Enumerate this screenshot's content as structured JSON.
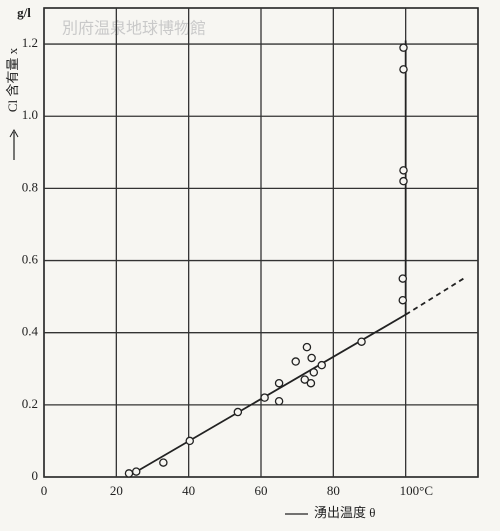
{
  "chart_data": {
    "type": "scatter",
    "watermark": "別府温泉地球博物館",
    "unit_label": "g/l",
    "y_label": "Cl 含有量 x",
    "x_label": "湧出温度 θ",
    "xlim": [
      0,
      120
    ],
    "ylim": [
      0,
      1.3
    ],
    "xticks": [
      0,
      20,
      40,
      60,
      80,
      {
        "value": 100,
        "label": "100°C"
      }
    ],
    "yticks": [
      0,
      0.2,
      0.4,
      0.6,
      0.8,
      {
        "value": 1,
        "label": "1.0"
      },
      1.2
    ],
    "grid": true,
    "color": "#222222",
    "x": [
      23.5,
      25.5,
      33,
      40.3,
      53.6,
      61,
      65,
      65,
      69.6,
      72.7,
      72.1,
      73.8,
      74,
      74.6,
      76.8,
      87.8,
      99.2,
      99.2,
      99.4,
      99.4,
      99.4,
      99.4
    ],
    "values": [
      0.01,
      0.015,
      0.04,
      0.1,
      0.18,
      0.22,
      0.26,
      0.21,
      0.32,
      0.36,
      0.27,
      0.26,
      0.33,
      0.29,
      0.31,
      0.375,
      0.49,
      0.55,
      0.82,
      0.85,
      1.13,
      1.19
    ],
    "fit_line": {
      "x": [
        23,
        100
      ],
      "values": [
        0,
        0.45
      ]
    },
    "extrapolation": {
      "x": [
        100,
        116
      ],
      "values": [
        0.45,
        0.55
      ]
    },
    "vertical_line": {
      "x": [
        100,
        100
      ],
      "values": [
        0.45,
        1.21
      ]
    }
  }
}
